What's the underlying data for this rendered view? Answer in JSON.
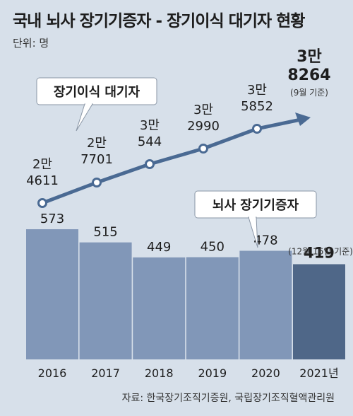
{
  "title": "국내 뇌사 장기기증자 - 장기이식 대기자 현황",
  "unit_label": "단위: 명",
  "source": "자료: 한국장기조직기증원, 국립장기조직혈액관리원",
  "colors": {
    "background": "#d7e0ea",
    "line": "#4a6a93",
    "bar": "#8197b8",
    "bar_highlight": "#4f6788",
    "text": "#1d1d1d"
  },
  "chart_data": [
    {
      "type": "line",
      "label": "장기이식 대기자",
      "x": [
        "2016",
        "2017",
        "2018",
        "2019",
        "2020",
        "2021"
      ],
      "values": [
        24611,
        27701,
        30544,
        32990,
        35852,
        38264
      ],
      "point_labels": [
        [
          "2만",
          "4611"
        ],
        [
          "2만",
          "7701"
        ],
        [
          "3만",
          "544"
        ],
        [
          "3만",
          "2990"
        ],
        [
          "3만",
          "5852"
        ],
        [
          "3만",
          "8264"
        ]
      ],
      "last_note": "(9월 기준)",
      "last_point_marker": "arrow"
    },
    {
      "type": "bar",
      "label": "뇌사 장기기증자",
      "categories": [
        "2016",
        "2017",
        "2018",
        "2019",
        "2020",
        "2021년"
      ],
      "values": [
        573,
        515,
        449,
        450,
        478,
        419
      ],
      "value_labels": [
        "573",
        "515",
        "449",
        "450",
        "478",
        "419"
      ],
      "last_note": "(12월 16일 기준)",
      "highlight_last": true
    }
  ]
}
